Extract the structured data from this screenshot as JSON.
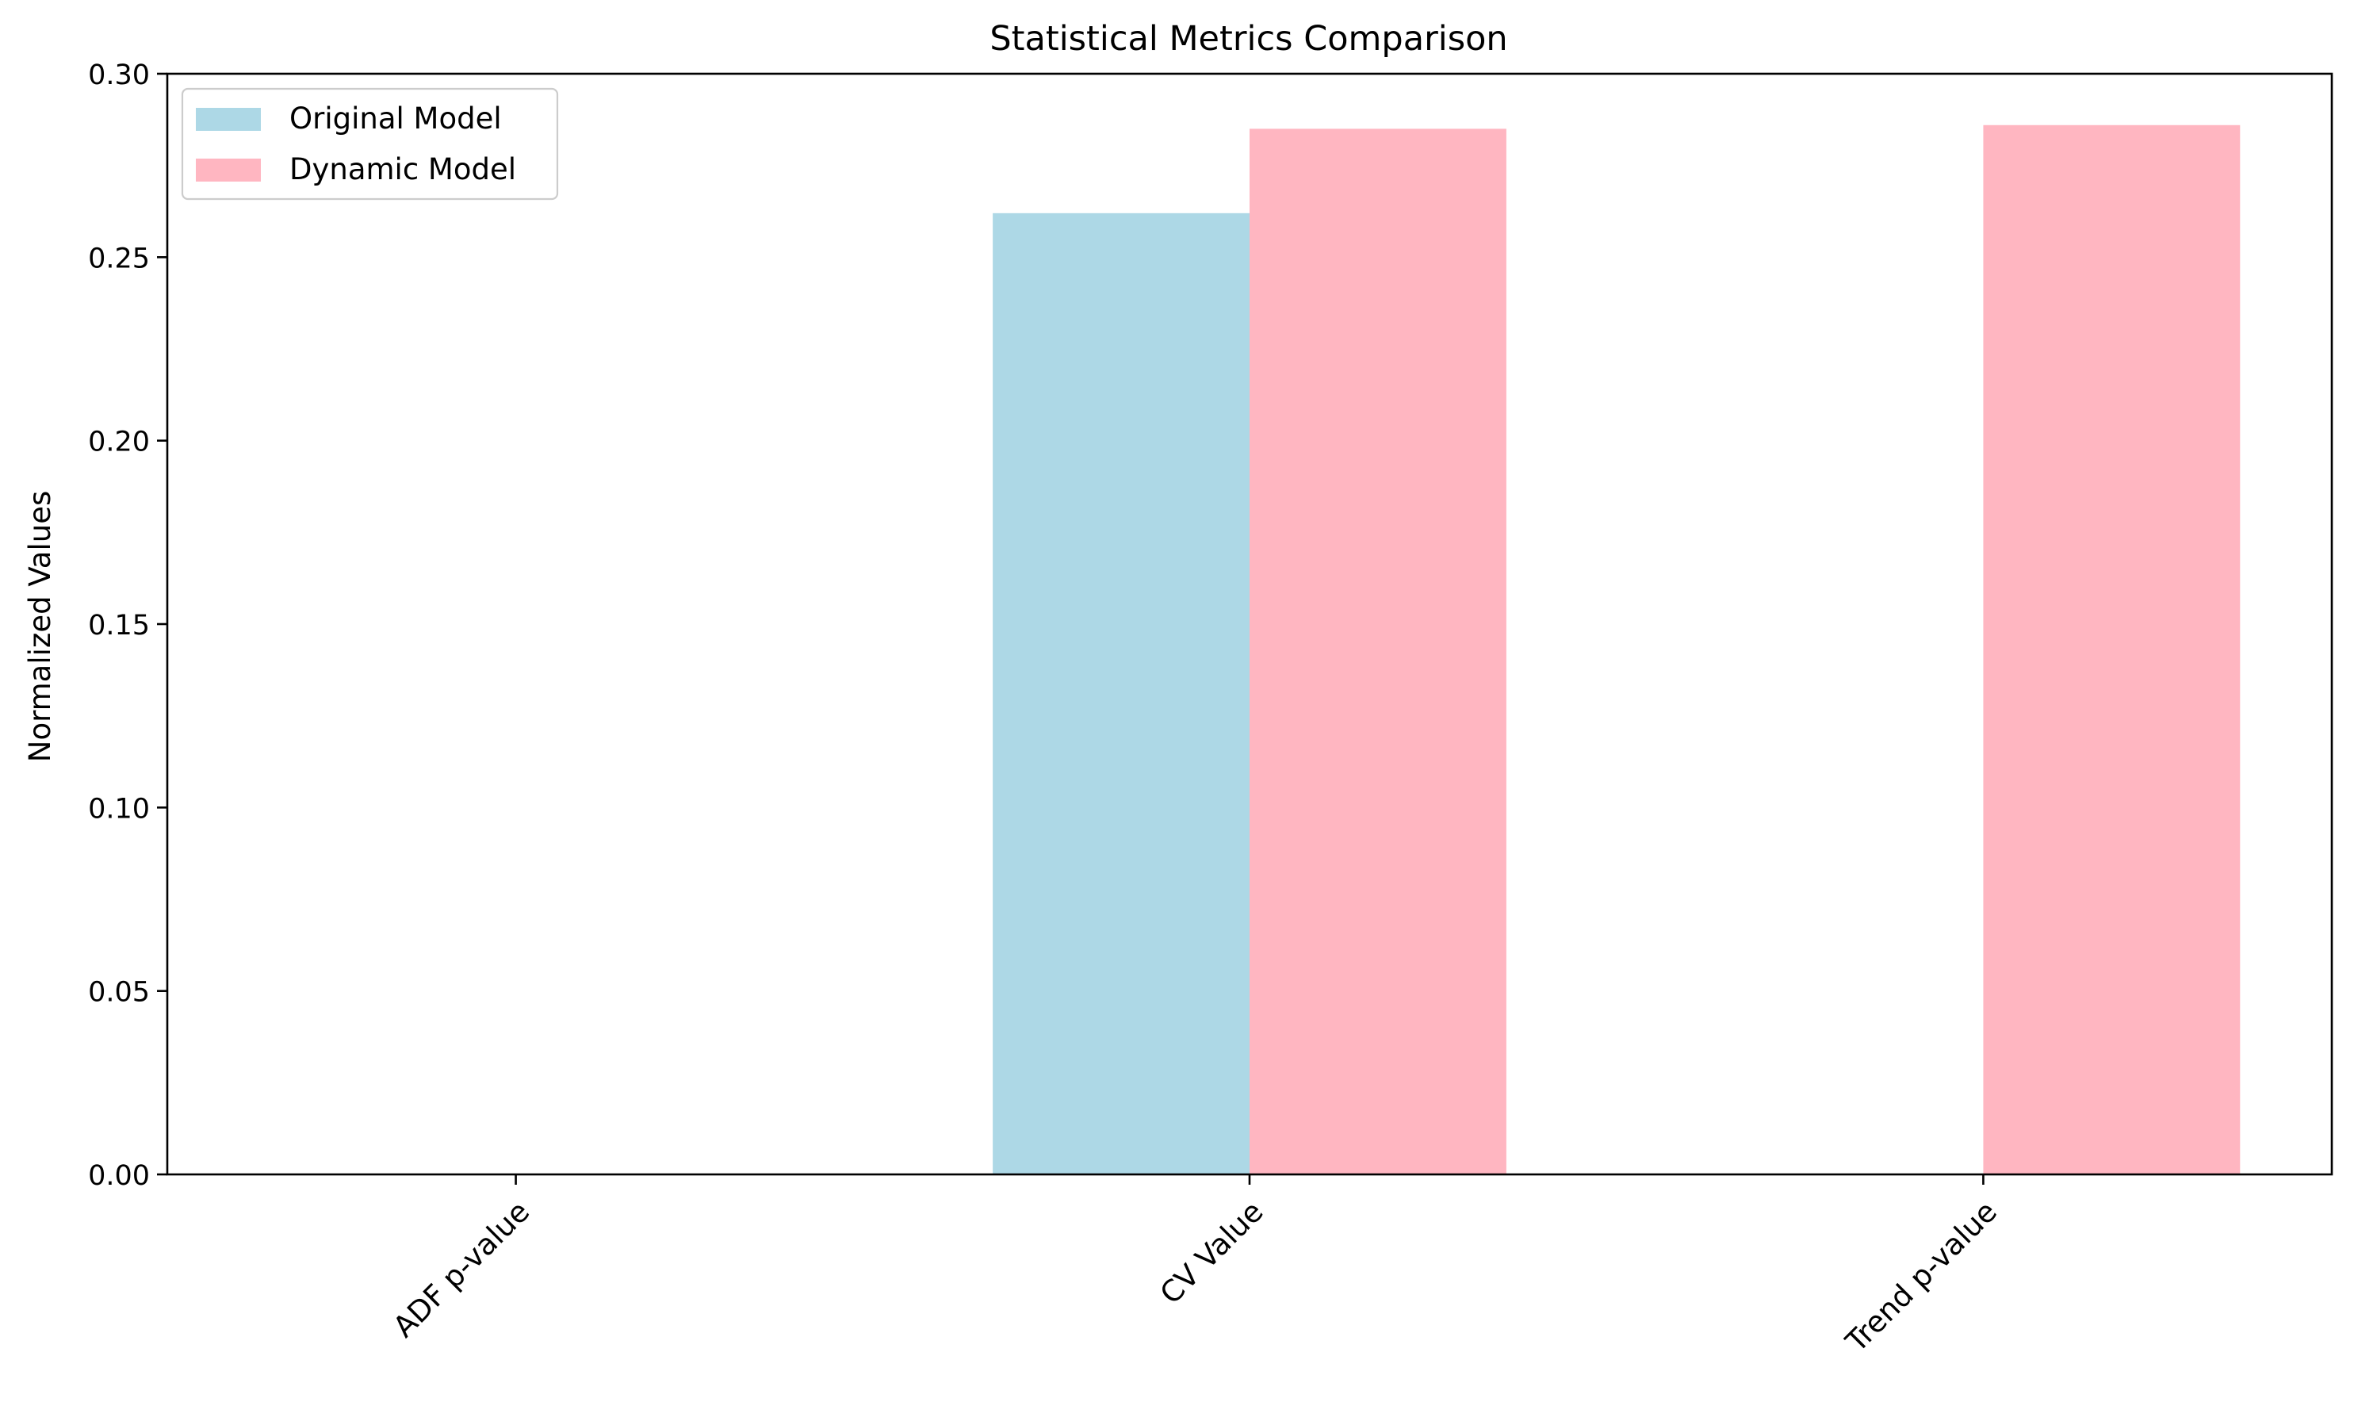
{
  "chart_data": {
    "type": "bar",
    "title": "Statistical Metrics Comparison",
    "xlabel": "",
    "ylabel": "Normalized Values",
    "categories": [
      "ADF p-value",
      "CV Value",
      "Trend p-value"
    ],
    "series": [
      {
        "name": "Original Model",
        "color": "#add8e6",
        "values": [
          0.0,
          0.262,
          0.0
        ]
      },
      {
        "name": "Dynamic Model",
        "color": "#ffb6c1",
        "values": [
          0.0,
          0.285,
          0.286
        ]
      }
    ],
    "ylim": [
      0.0,
      0.3
    ],
    "yticks": [
      "0.00",
      "0.05",
      "0.10",
      "0.15",
      "0.20",
      "0.25",
      "0.30"
    ],
    "grid": false,
    "legend_position": "upper-left",
    "xtick_rotation_deg": 45
  }
}
